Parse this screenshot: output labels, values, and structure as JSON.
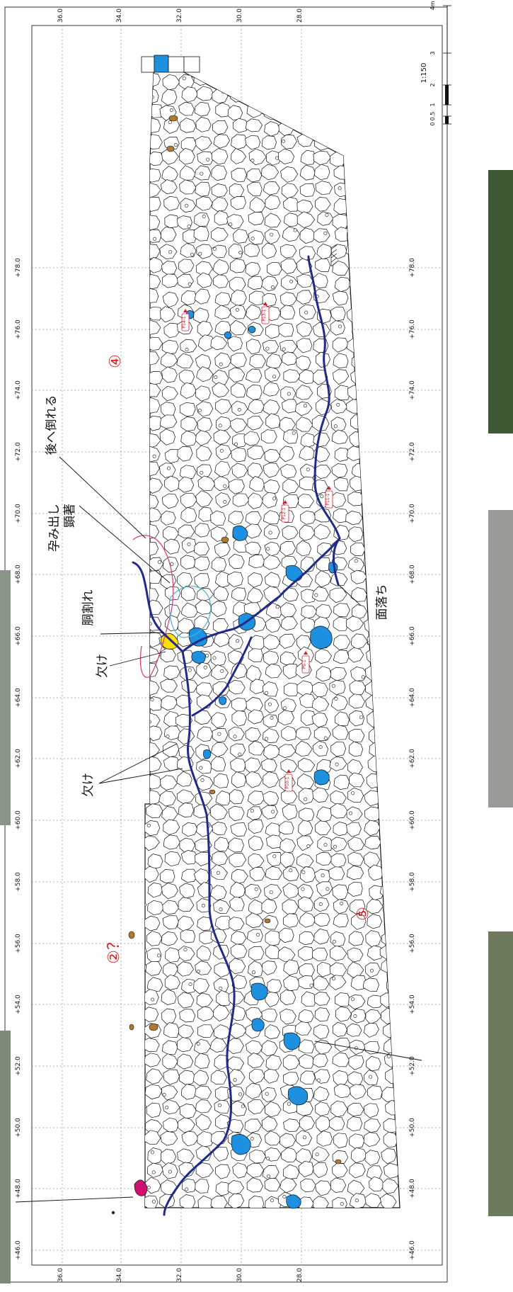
{
  "drawing": {
    "grid_lines_sides": [
      "+46.0",
      "+48.0",
      "+50.0",
      "+52.0",
      "+54.0",
      "+56.0",
      "+58.0",
      "+60.0",
      "+62.0",
      "+64.0",
      "+66.0",
      "+68.0",
      "+70.0",
      "+72.0",
      "+74.0",
      "+76.0",
      "+78.0"
    ],
    "grid_lines_elev": [
      "36.0",
      "34.0",
      "32.0",
      "30.0",
      "28.0"
    ],
    "scale": {
      "label": "1:150",
      "ticks": [
        "0",
        "0.5",
        "1",
        "2",
        "3",
        "4m"
      ]
    },
    "zones": [
      "④",
      "②？",
      "⑤"
    ],
    "annotations": {
      "ushiro_taoreru": "後へ倒れる",
      "haramidashi": "孕み出し",
      "kenchaku": "顕著",
      "dowari": "胴割れ",
      "kake_1": "欠け",
      "kake_2": "欠け",
      "menochi": "面落ち"
    },
    "stone_tags": [
      "P9-1",
      "P10-1",
      "P11-1",
      "P12-1",
      "P13-1",
      "P14-1"
    ],
    "colors": {
      "boundary_line": "#1f2a8a",
      "missing_stone": "#1e90e0",
      "cut_stone": "#ffe000",
      "pink_outline": "#e0407a",
      "cyan_outline": "#40b8d8",
      "zone_label": "#e02020",
      "tag_red": "#d0202a",
      "brown_stone": "#b07830"
    }
  }
}
